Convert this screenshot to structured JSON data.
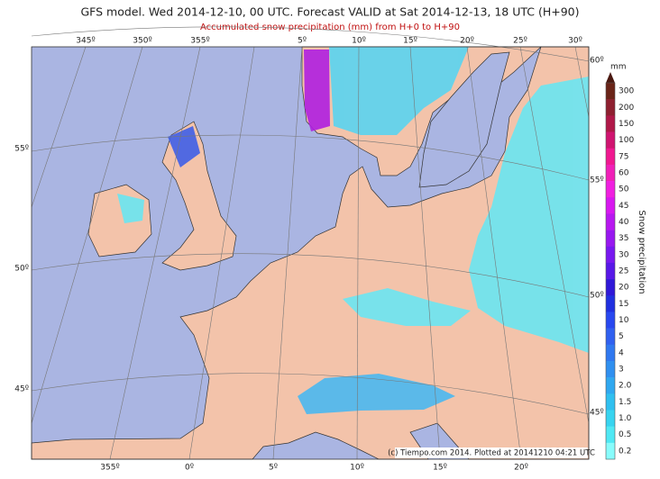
{
  "header": {
    "title": "GFS model. Wed 2014-12-10, 00 UTC. Forecast VALID at Sat 2014-12-13, 18 UTC (H+90)",
    "subtitle": "Accumulated snow precipitation (mm) from H+0 to H+90"
  },
  "map": {
    "lon_top": [
      "345º",
      "350º",
      "355º",
      "5º",
      "10º",
      "15º",
      "20º",
      "25º",
      "30º"
    ],
    "lon_bottom": [
      "355º",
      "0º",
      "5º",
      "10º",
      "15º",
      "20º"
    ],
    "lat_left": [
      "55º",
      "50º",
      "45º"
    ],
    "lat_right": [
      "60º",
      "55º",
      "50º",
      "45º"
    ],
    "credit": "(c) Tiempo.com 2014. Plotted at 20141210 04:21 UTC"
  },
  "legend": {
    "unit": "mm",
    "title": "Snow precipitation",
    "levels": [
      {
        "label": "300",
        "color": "#6a2418"
      },
      {
        "label": "200",
        "color": "#8e2030"
      },
      {
        "label": "150",
        "color": "#b01848"
      },
      {
        "label": "100",
        "color": "#d01470"
      },
      {
        "label": "75",
        "color": "#f01890"
      },
      {
        "label": "60",
        "color": "#f020b8"
      },
      {
        "label": "50",
        "color": "#f020e0"
      },
      {
        "label": "45",
        "color": "#d818f0"
      },
      {
        "label": "40",
        "color": "#b818f0"
      },
      {
        "label": "35",
        "color": "#9818f0"
      },
      {
        "label": "30",
        "color": "#7818f0"
      },
      {
        "label": "25",
        "color": "#5818e8"
      },
      {
        "label": "20",
        "color": "#3018d8"
      },
      {
        "label": "15",
        "color": "#2030e0"
      },
      {
        "label": "10",
        "color": "#2848f0"
      },
      {
        "label": "5",
        "color": "#3060f0"
      },
      {
        "label": "4",
        "color": "#3078f0"
      },
      {
        "label": "3",
        "color": "#3090f0"
      },
      {
        "label": "2.0",
        "color": "#30a8f0"
      },
      {
        "label": "1.5",
        "color": "#30c0f0"
      },
      {
        "label": "1.0",
        "color": "#38d4f0"
      },
      {
        "label": "0.5",
        "color": "#50e8f4"
      },
      {
        "label": "0.2",
        "color": "#88fcfc"
      }
    ]
  }
}
